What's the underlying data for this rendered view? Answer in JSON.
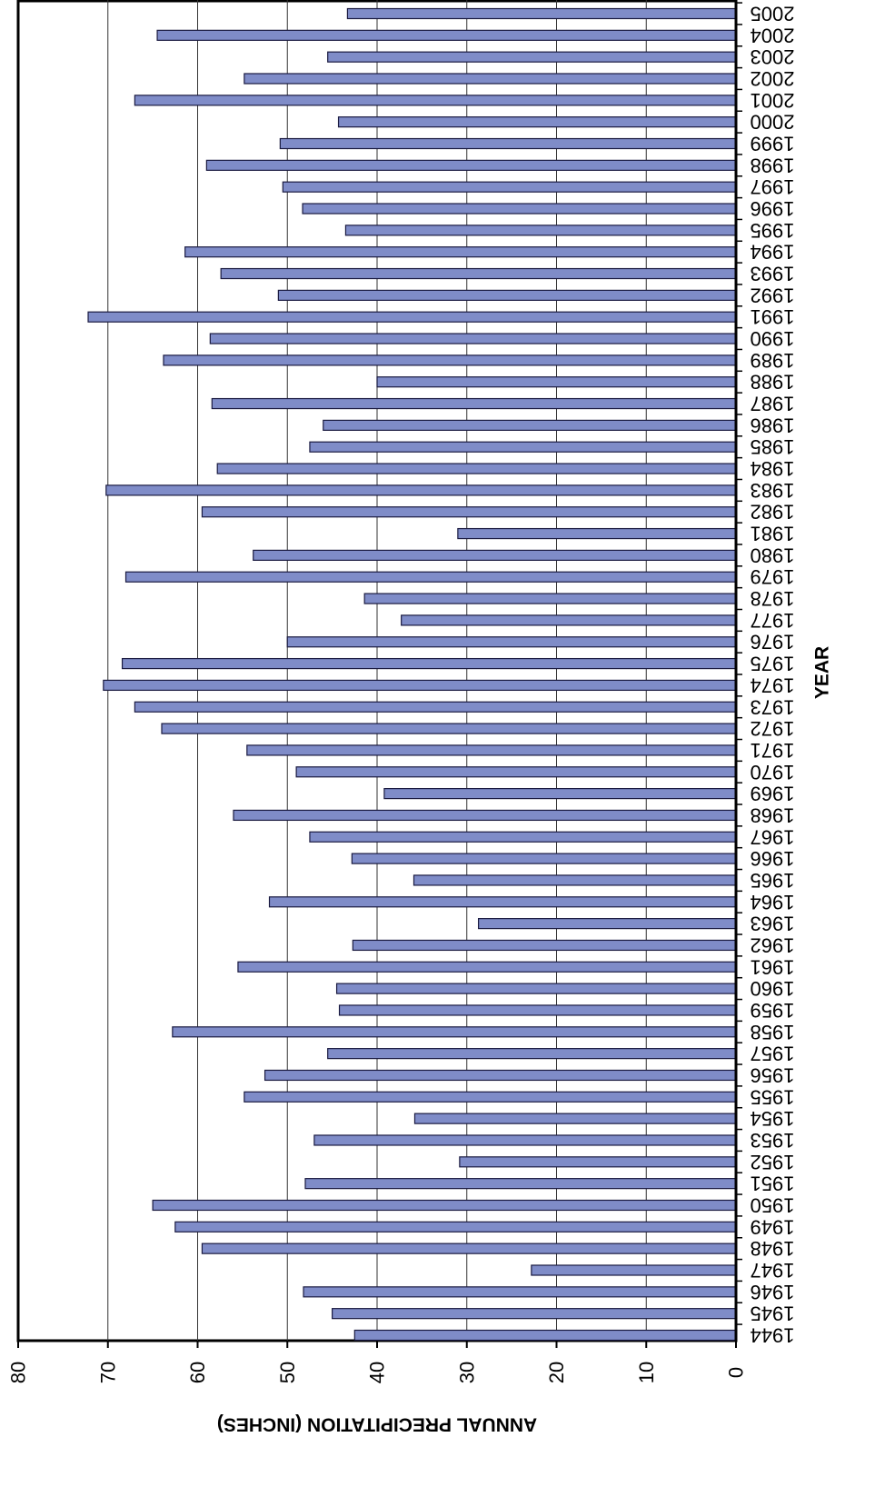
{
  "chart_data": {
    "type": "bar",
    "orientation": "horizontal",
    "xlabel": "YEAR",
    "ylabel": "ANNUAL PRECIPITATION (INCHES)",
    "ylim": [
      0,
      80
    ],
    "y_ticks": [
      0,
      10,
      20,
      30,
      40,
      50,
      60,
      70,
      80
    ],
    "grid": true,
    "bar_color": "#7f8cc8",
    "bar_edge_color": "#1a1a40",
    "categories": [
      "1944",
      "1945",
      "1946",
      "1947",
      "1948",
      "1949",
      "1950",
      "1951",
      "1952",
      "1953",
      "1954",
      "1955",
      "1956",
      "1957",
      "1958",
      "1959",
      "1960",
      "1961",
      "1962",
      "1963",
      "1964",
      "1965",
      "1966",
      "1967",
      "1968",
      "1969",
      "1970",
      "1971",
      "1972",
      "1973",
      "1974",
      "1975",
      "1976",
      "1977",
      "1978",
      "1979",
      "1980",
      "1981",
      "1982",
      "1983",
      "1984",
      "1985",
      "1986",
      "1987",
      "1988",
      "1989",
      "1990",
      "1991",
      "1992",
      "1993",
      "1994",
      "1995",
      "1996",
      "1997",
      "1998",
      "1999",
      "2000",
      "2001",
      "2002",
      "2003",
      "2004",
      "2005"
    ],
    "values": [
      42.5,
      45,
      48.2,
      22.8,
      59.5,
      62.5,
      65,
      48,
      30.8,
      47,
      35.8,
      54.8,
      52.5,
      45.5,
      62.8,
      44.2,
      44.5,
      55.5,
      42.7,
      28.7,
      52,
      35.9,
      42.8,
      47.5,
      56,
      39.2,
      49,
      54.5,
      64,
      67,
      70.5,
      68.4,
      50,
      37.3,
      41.4,
      68,
      53.8,
      31,
      59.5,
      70.2,
      57.8,
      47.5,
      46,
      58.4,
      40,
      63.8,
      58.6,
      72.2,
      51,
      57.4,
      61.4,
      43.5,
      48.3,
      50.5,
      59,
      50.8,
      44.3,
      67,
      54.8,
      45.5,
      64.5,
      43.3
    ]
  }
}
